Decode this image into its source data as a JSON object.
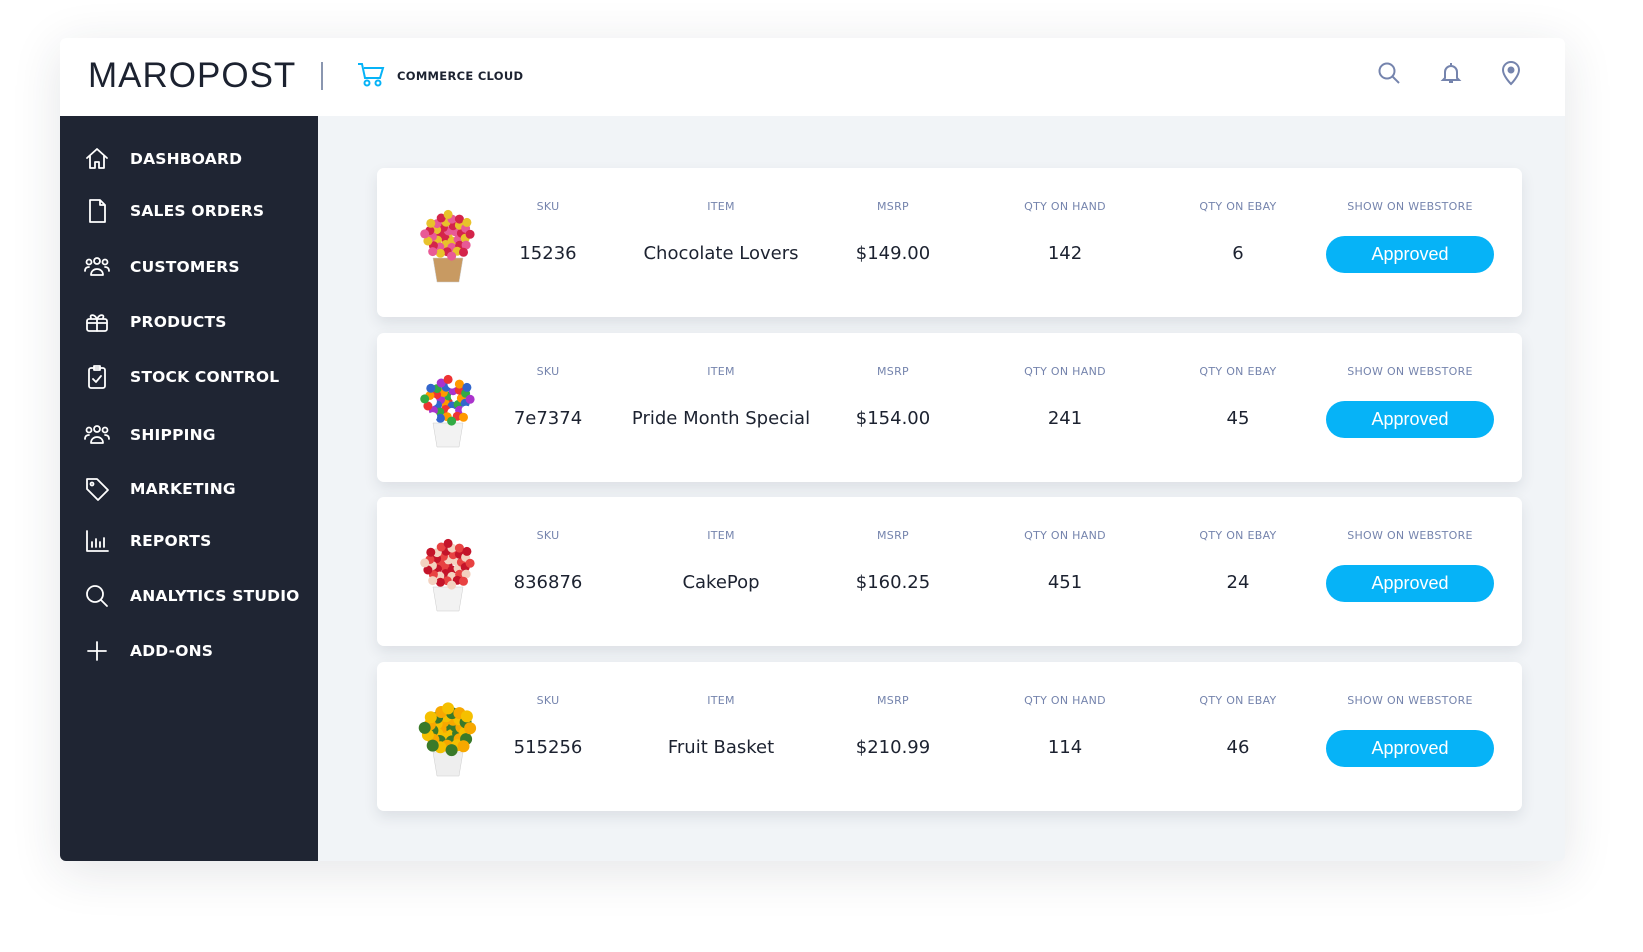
{
  "header": {
    "logo": "MAROPOST",
    "product": "COMMERCE CLOUD",
    "icons": [
      "search-icon",
      "bell-icon",
      "location-pin-icon"
    ]
  },
  "sidebar": {
    "items": [
      {
        "label": "DASHBOARD",
        "icon": "home-icon"
      },
      {
        "label": "SALES ORDERS",
        "icon": "document-icon"
      },
      {
        "label": "CUSTOMERS",
        "icon": "users-icon"
      },
      {
        "label": "PRODUCTS",
        "icon": "gift-icon"
      },
      {
        "label": "STOCK CONTROL",
        "icon": "clipboard-check-icon"
      },
      {
        "label": "SHIPPING",
        "icon": "users-icon"
      },
      {
        "label": "MARKETING",
        "icon": "tag-icon"
      },
      {
        "label": "REPORTS",
        "icon": "bar-chart-icon"
      },
      {
        "label": "ANALYTICS STUDIO",
        "icon": "search-icon"
      },
      {
        "label": "ADD-ONS",
        "icon": "plus-icon"
      }
    ]
  },
  "columns": {
    "sku": "SKU",
    "item": "ITEM",
    "msrp": "MSRP",
    "qty_hand": "QTY ON HAND",
    "qty_ebay": "QTY ON EBAY",
    "webstore": "SHOW ON WEBSTORE"
  },
  "products": [
    {
      "sku": "15236",
      "item": "Chocolate Lovers",
      "msrp": "$149.00",
      "qty_hand": "142",
      "qty_ebay": "6",
      "status": "Approved"
    },
    {
      "sku": "7e7374",
      "item": "Pride Month Special",
      "msrp": "$154.00",
      "qty_hand": "241",
      "qty_ebay": "45",
      "status": "Approved"
    },
    {
      "sku": "836876",
      "item": "CakePop",
      "msrp": "$160.25",
      "qty_hand": "451",
      "qty_ebay": "24",
      "status": "Approved"
    },
    {
      "sku": "515256",
      "item": "Fruit Basket",
      "msrp": "$210.99",
      "qty_hand": "114",
      "qty_ebay": "46",
      "status": "Approved"
    }
  ],
  "colors": {
    "accent": "#06b3f7",
    "sidebar": "#1f2533",
    "label": "#7584ad"
  }
}
